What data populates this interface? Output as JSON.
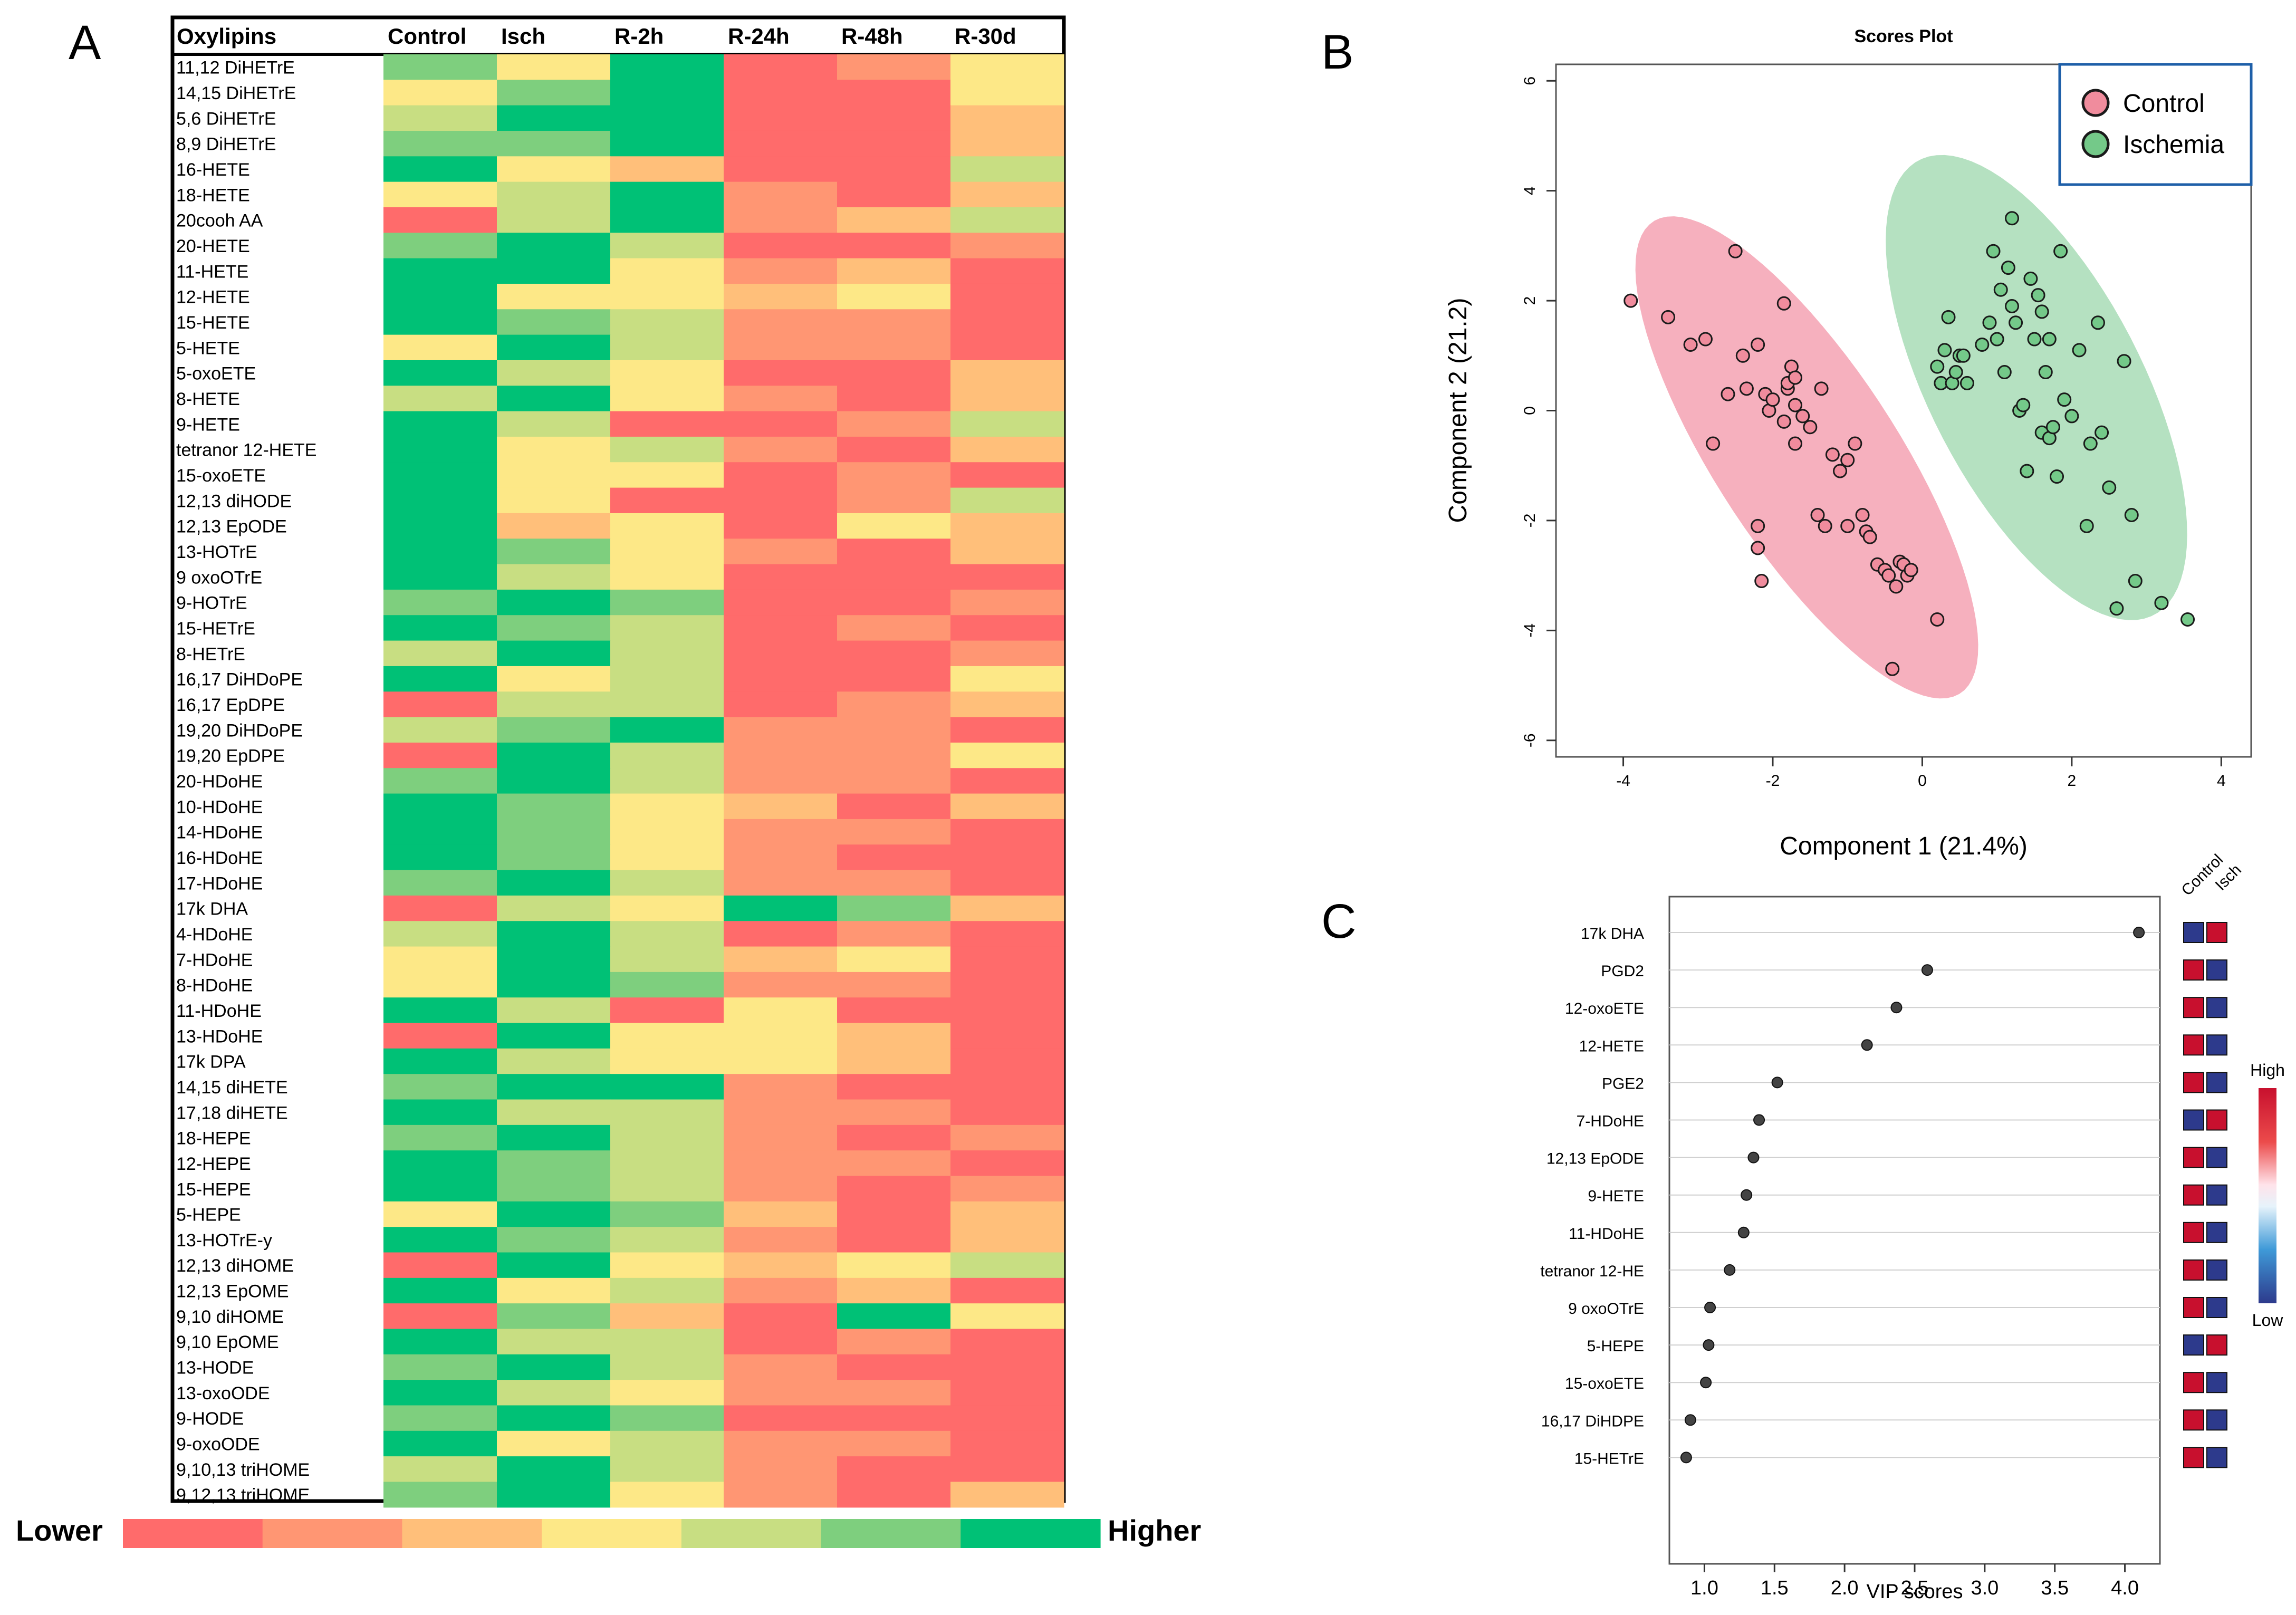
{
  "panels": {
    "a": {
      "letter": "A"
    },
    "b": {
      "letter": "B"
    },
    "c": {
      "letter": "C"
    }
  },
  "colors": {
    "scale": [
      "#ff6b6b",
      "#ff9673",
      "#ffbf7a",
      "#fde887",
      "#c8de82",
      "#7ecf7e",
      "#00c176"
    ],
    "control": "#f08c9d",
    "ischemia": "#74c989",
    "control_ellipse": "#f5a2b3",
    "ischemia_ellipse": "#a8dcb6",
    "legend_border": "#1e5fa8",
    "vip_high": "#c8102e",
    "vip_low": "#2d3a8c"
  },
  "chart_data": [
    {
      "type": "heatmap",
      "panel": "A",
      "row_header": "Oxylipins",
      "columns": [
        "Control",
        "Isch",
        "R-2h",
        "R-24h",
        "R-48h",
        "R-30d"
      ],
      "rows": [
        "11,12 DiHETrE",
        "14,15 DiHETrE",
        "5,6 DiHETrE",
        "8,9 DiHETrE",
        "16-HETE",
        "18-HETE",
        "20cooh AA",
        "20-HETE",
        "11-HETE",
        "12-HETE",
        "15-HETE",
        "5-HETE",
        "5-oxoETE",
        "8-HETE",
        "9-HETE",
        "tetranor 12-HETE",
        "15-oxoETE",
        "12,13 diHODE",
        "12,13 EpODE",
        "13-HOTrE",
        "9 oxoOTrE",
        "9-HOTrE",
        "15-HETrE",
        "8-HETrE",
        "16,17 DiHDoPE",
        "16,17 EpDPE",
        "19,20 DiHDoPE",
        "19,20 EpDPE",
        "20-HDoHE",
        "10-HDoHE",
        "14-HDoHE",
        "16-HDoHE",
        "17-HDoHE",
        "17k DHA",
        "4-HDoHE",
        "7-HDoHE",
        "8-HDoHE",
        "11-HDoHE",
        "13-HDoHE",
        "17k DPA",
        "14,15 diHETE",
        "17,18 diHETE",
        "18-HEPE",
        "12-HEPE",
        "15-HEPE",
        "5-HEPE",
        "13-HOTrE-y",
        "12,13 diHOME",
        "12,13 EpOME",
        "9,10 diHOME",
        "9,10 EpOME",
        "13-HODE",
        "13-oxoODE",
        "9-HODE",
        "9-oxoODE",
        "9,10,13 triHOME",
        "9,12,13 triHOME"
      ],
      "values": [
        [
          5,
          3,
          6,
          0,
          1,
          3
        ],
        [
          3,
          5,
          6,
          0,
          0,
          3
        ],
        [
          4,
          6,
          6,
          0,
          0,
          2
        ],
        [
          5,
          5,
          6,
          0,
          0,
          2
        ],
        [
          6,
          3,
          2,
          0,
          0,
          4
        ],
        [
          3,
          4,
          6,
          1,
          0,
          2
        ],
        [
          0,
          4,
          6,
          1,
          2,
          4
        ],
        [
          5,
          6,
          4,
          0,
          0,
          1
        ],
        [
          6,
          6,
          3,
          1,
          2,
          0
        ],
        [
          6,
          3,
          3,
          2,
          3,
          0
        ],
        [
          6,
          5,
          4,
          1,
          1,
          0
        ],
        [
          3,
          6,
          4,
          1,
          1,
          0
        ],
        [
          6,
          4,
          3,
          0,
          0,
          2
        ],
        [
          4,
          6,
          3,
          1,
          0,
          2
        ],
        [
          6,
          4,
          0,
          0,
          1,
          4
        ],
        [
          6,
          3,
          4,
          1,
          0,
          2
        ],
        [
          6,
          3,
          3,
          0,
          1,
          0
        ],
        [
          6,
          3,
          0,
          0,
          1,
          4
        ],
        [
          6,
          2,
          3,
          0,
          3,
          2
        ],
        [
          6,
          5,
          3,
          1,
          0,
          2
        ],
        [
          6,
          4,
          3,
          0,
          0,
          0
        ],
        [
          5,
          6,
          5,
          0,
          0,
          1
        ],
        [
          6,
          5,
          4,
          0,
          1,
          0
        ],
        [
          4,
          6,
          4,
          0,
          0,
          1
        ],
        [
          6,
          3,
          4,
          0,
          0,
          3
        ],
        [
          0,
          4,
          4,
          0,
          1,
          2
        ],
        [
          4,
          5,
          6,
          1,
          1,
          0
        ],
        [
          0,
          6,
          4,
          1,
          1,
          3
        ],
        [
          5,
          6,
          4,
          1,
          1,
          0
        ],
        [
          6,
          5,
          3,
          2,
          0,
          2
        ],
        [
          6,
          5,
          3,
          1,
          1,
          0
        ],
        [
          6,
          5,
          3,
          1,
          0,
          0
        ],
        [
          5,
          6,
          4,
          1,
          1,
          0
        ],
        [
          0,
          4,
          3,
          6,
          5,
          2
        ],
        [
          4,
          6,
          4,
          0,
          1,
          0
        ],
        [
          3,
          6,
          4,
          2,
          3,
          0
        ],
        [
          3,
          6,
          5,
          1,
          1,
          0
        ],
        [
          6,
          4,
          0,
          3,
          0,
          0
        ],
        [
          0,
          6,
          3,
          3,
          2,
          0
        ],
        [
          6,
          4,
          3,
          3,
          2,
          0
        ],
        [
          5,
          6,
          6,
          1,
          0,
          0
        ],
        [
          6,
          4,
          4,
          1,
          1,
          0
        ],
        [
          5,
          6,
          4,
          1,
          0,
          1
        ],
        [
          6,
          5,
          4,
          1,
          1,
          0
        ],
        [
          6,
          5,
          4,
          1,
          0,
          1
        ],
        [
          3,
          6,
          5,
          2,
          0,
          2
        ],
        [
          6,
          5,
          4,
          1,
          0,
          2
        ],
        [
          0,
          6,
          3,
          2,
          3,
          4
        ],
        [
          6,
          3,
          4,
          1,
          2,
          0
        ],
        [
          0,
          5,
          2,
          0,
          6,
          3
        ],
        [
          6,
          4,
          4,
          0,
          1,
          0
        ],
        [
          5,
          6,
          4,
          1,
          0,
          0
        ],
        [
          6,
          4,
          3,
          1,
          1,
          0
        ],
        [
          5,
          6,
          5,
          0,
          0,
          0
        ],
        [
          6,
          3,
          4,
          1,
          1,
          0
        ],
        [
          4,
          6,
          4,
          1,
          0,
          0
        ],
        [
          5,
          6,
          3,
          1,
          0,
          2
        ]
      ],
      "legend": {
        "low_label": "Lower",
        "high_label": "Higher",
        "steps": 7
      }
    },
    {
      "type": "scatter",
      "panel": "B",
      "title": "Scores Plot",
      "xlabel": "Component 1 (21.4%)",
      "ylabel": "Component 2 (21.2)",
      "xlim": [
        -4.9,
        4.4
      ],
      "ylim": [
        -6.3,
        6.3
      ],
      "xticks": [
        -4,
        -2,
        0,
        2,
        4
      ],
      "yticks": [
        -6,
        -4,
        -2,
        0,
        2,
        4,
        6
      ],
      "xtick_labels": [
        "-4",
        "-2",
        "0",
        "2",
        "4"
      ],
      "ytick_labels": [
        "-6",
        "-4",
        "-2",
        "0",
        "2",
        "4",
        "6"
      ],
      "legend_position": "top-right",
      "series": [
        {
          "name": "Control",
          "x": [
            -3.9,
            -3.4,
            -3.1,
            -2.9,
            -2.8,
            -2.6,
            -2.5,
            -2.4,
            -2.35,
            -2.2,
            -2.2,
            -2.2,
            -2.15,
            -2.1,
            -2.05,
            -2.0,
            -1.85,
            -1.85,
            -1.8,
            -1.8,
            -1.75,
            -1.7,
            -1.7,
            -1.7,
            -1.6,
            -1.5,
            -1.4,
            -1.35,
            -1.3,
            -1.2,
            -1.1,
            -1.0,
            -1.0,
            -0.9,
            -0.8,
            -0.75,
            -0.7,
            -0.6,
            -0.5,
            -0.45,
            -0.4,
            -0.35,
            -0.3,
            -0.25,
            -0.2,
            -0.15,
            0.2
          ],
          "y": [
            2.0,
            1.7,
            1.2,
            1.3,
            -0.6,
            0.3,
            2.9,
            1.0,
            0.4,
            1.2,
            -2.1,
            -2.5,
            -3.1,
            0.3,
            0.0,
            0.2,
            -0.2,
            1.95,
            0.4,
            0.5,
            0.8,
            0.1,
            -0.6,
            0.6,
            -0.1,
            -0.3,
            -1.9,
            0.4,
            -2.1,
            -0.8,
            -1.1,
            -2.1,
            -0.9,
            -0.6,
            -1.9,
            -2.2,
            -2.3,
            -2.8,
            -2.9,
            -3.0,
            -4.7,
            -3.2,
            -2.75,
            -2.8,
            -3.0,
            -2.9,
            -3.8
          ]
        },
        {
          "name": "Ischemia",
          "x": [
            0.2,
            0.25,
            0.3,
            0.35,
            0.4,
            0.45,
            0.5,
            0.55,
            0.6,
            0.8,
            0.9,
            0.95,
            1.0,
            1.05,
            1.1,
            1.15,
            1.2,
            1.2,
            1.25,
            1.3,
            1.35,
            1.4,
            1.45,
            1.5,
            1.55,
            1.6,
            1.6,
            1.65,
            1.7,
            1.7,
            1.75,
            1.8,
            1.85,
            1.9,
            2.0,
            2.1,
            2.2,
            2.25,
            2.35,
            2.4,
            2.5,
            2.6,
            2.7,
            2.8,
            2.85,
            3.2,
            3.55
          ],
          "y": [
            0.8,
            0.5,
            1.1,
            1.7,
            0.5,
            0.7,
            1.0,
            1.0,
            0.5,
            1.2,
            1.6,
            2.9,
            1.3,
            2.2,
            0.7,
            2.6,
            1.9,
            3.5,
            1.6,
            0.0,
            0.1,
            -1.1,
            2.4,
            1.3,
            2.1,
            1.8,
            -0.4,
            0.7,
            -0.5,
            1.3,
            -0.3,
            -1.2,
            2.9,
            0.2,
            -0.1,
            1.1,
            -2.1,
            -0.6,
            1.6,
            -0.4,
            -1.4,
            -3.6,
            0.9,
            -1.9,
            -3.1,
            -3.5,
            -3.8
          ]
        }
      ]
    },
    {
      "type": "dot",
      "panel": "C",
      "xlabel": "VIP scores",
      "xlim": [
        0.75,
        4.25
      ],
      "xticks": [
        1.0,
        1.5,
        2.0,
        2.5,
        3.0,
        3.5,
        4.0
      ],
      "xtick_labels": [
        "1.0",
        "1.5",
        "2.0",
        "2.5",
        "3.0",
        "3.5",
        "4.0"
      ],
      "categories": [
        "17k DHA",
        "PGD2",
        "12-oxoETE",
        "12-HETE",
        "PGE2",
        "7-HDoHE",
        "12,13 EpODE",
        "9-HETE",
        "11-HDoHE",
        "tetranor 12-HE",
        "9 oxoOTrE",
        "5-HEPE",
        "15-oxoETE",
        "16,17 DiHDPE",
        "15-HETrE"
      ],
      "values": [
        4.1,
        2.59,
        2.37,
        2.16,
        1.52,
        1.39,
        1.35,
        1.3,
        1.28,
        1.18,
        1.04,
        1.03,
        1.01,
        0.9,
        0.87
      ],
      "group_labels": [
        "Control",
        "Isch"
      ],
      "group_levels": [
        [
          "low",
          "high"
        ],
        [
          "high",
          "low"
        ],
        [
          "high",
          "low"
        ],
        [
          "high",
          "low"
        ],
        [
          "high",
          "low"
        ],
        [
          "low",
          "high"
        ],
        [
          "high",
          "low"
        ],
        [
          "high",
          "low"
        ],
        [
          "high",
          "low"
        ],
        [
          "high",
          "low"
        ],
        [
          "high",
          "low"
        ],
        [
          "low",
          "high"
        ],
        [
          "high",
          "low"
        ],
        [
          "high",
          "low"
        ],
        [
          "high",
          "low"
        ]
      ],
      "colorbar": {
        "high_label": "High",
        "low_label": "Low"
      }
    }
  ]
}
